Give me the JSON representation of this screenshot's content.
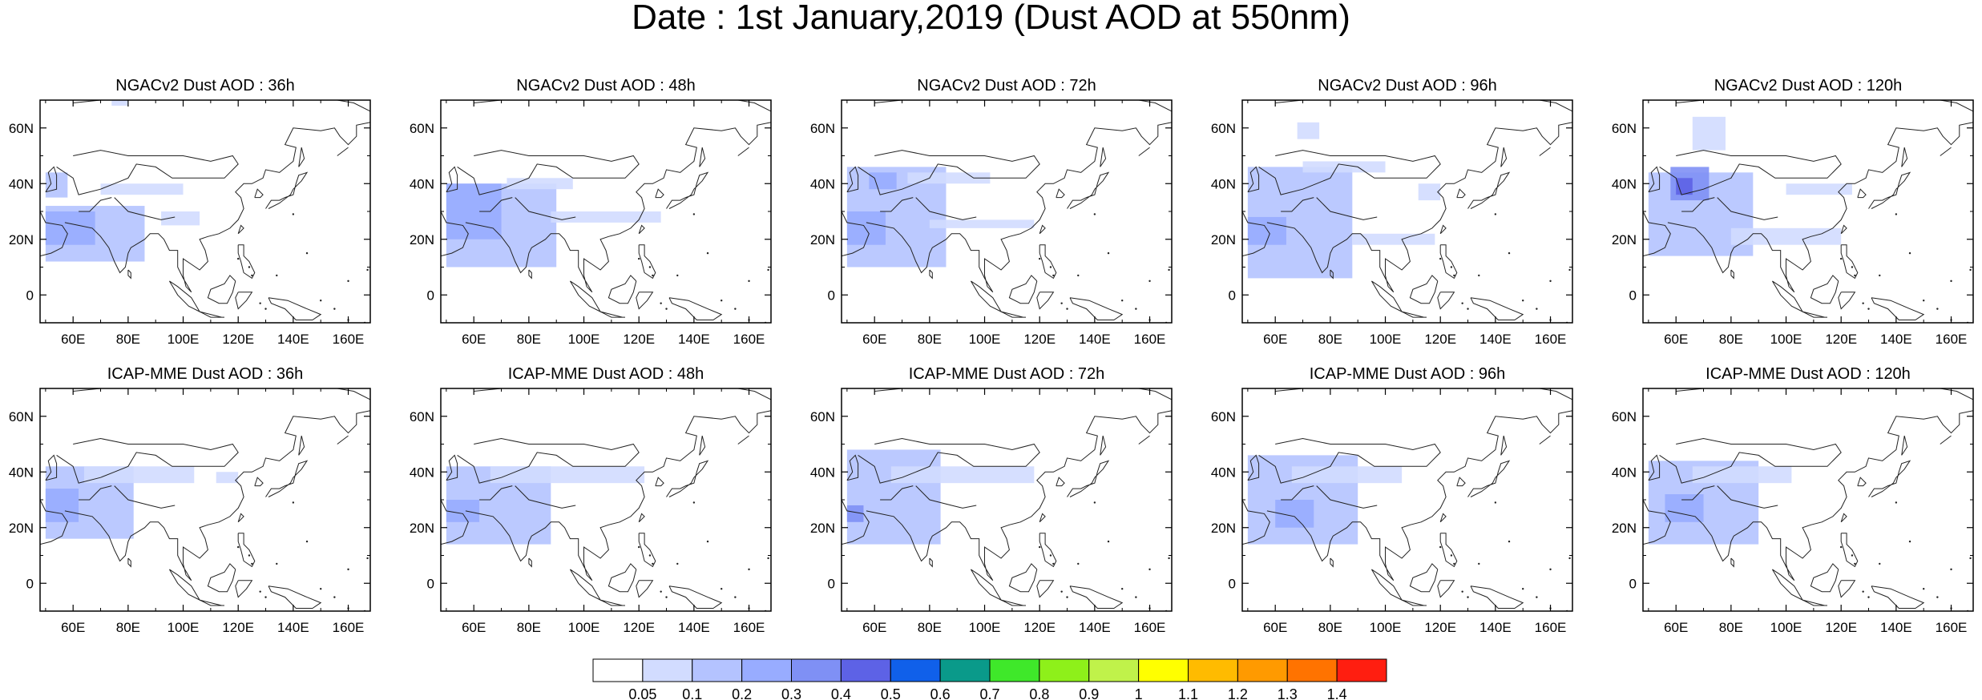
{
  "title": "Date : 1st January,2019 (Dust AOD at 550nm)",
  "x_ticks": [
    "60E",
    "80E",
    "100E",
    "120E",
    "140E",
    "160E"
  ],
  "y_ticks": [
    "60N",
    "40N",
    "20N",
    "0"
  ],
  "x_tick_values": [
    60,
    80,
    100,
    120,
    140,
    160
  ],
  "y_tick_values": [
    60,
    40,
    20,
    0
  ],
  "lon_range": [
    48,
    168
  ],
  "lat_range": [
    -10,
    70
  ],
  "rows": [
    {
      "model": "NGACv2",
      "panels": [
        {
          "title": "NGACv2 Dust AOD : 36h",
          "lead_hours": 36,
          "dust_regions": [
            {
              "lon": 50,
              "lat": 35,
              "w": 8,
              "h": 9,
              "aod": 0.15
            },
            {
              "lon": 50,
              "lat": 12,
              "w": 36,
              "h": 20,
              "aod": 0.15
            },
            {
              "lon": 50,
              "lat": 18,
              "w": 18,
              "h": 12,
              "aod": 0.25
            },
            {
              "lon": 70,
              "lat": 36,
              "w": 30,
              "h": 4,
              "aod": 0.08
            },
            {
              "lon": 92,
              "lat": 25,
              "w": 14,
              "h": 5,
              "aod": 0.08
            },
            {
              "lon": 74,
              "lat": 68,
              "w": 6,
              "h": 3,
              "aod": 0.08
            }
          ]
        },
        {
          "title": "NGACv2 Dust AOD : 48h",
          "lead_hours": 48,
          "dust_regions": [
            {
              "lon": 50,
              "lat": 10,
              "w": 40,
              "h": 30,
              "aod": 0.15
            },
            {
              "lon": 50,
              "lat": 20,
              "w": 20,
              "h": 20,
              "aod": 0.25
            },
            {
              "lon": 72,
              "lat": 38,
              "w": 24,
              "h": 4,
              "aod": 0.08
            },
            {
              "lon": 88,
              "lat": 26,
              "w": 40,
              "h": 4,
              "aod": 0.08
            }
          ]
        },
        {
          "title": "NGACv2 Dust AOD : 72h",
          "lead_hours": 72,
          "dust_regions": [
            {
              "lon": 50,
              "lat": 10,
              "w": 36,
              "h": 36,
              "aod": 0.15
            },
            {
              "lon": 50,
              "lat": 18,
              "w": 14,
              "h": 12,
              "aod": 0.25
            },
            {
              "lon": 58,
              "lat": 38,
              "w": 10,
              "h": 6,
              "aod": 0.2
            },
            {
              "lon": 72,
              "lat": 40,
              "w": 30,
              "h": 4,
              "aod": 0.08
            },
            {
              "lon": 80,
              "lat": 24,
              "w": 38,
              "h": 3,
              "aod": 0.08
            }
          ]
        },
        {
          "title": "NGACv2 Dust AOD : 96h",
          "lead_hours": 96,
          "dust_regions": [
            {
              "lon": 50,
              "lat": 6,
              "w": 38,
              "h": 40,
              "aod": 0.15
            },
            {
              "lon": 50,
              "lat": 18,
              "w": 14,
              "h": 10,
              "aod": 0.25
            },
            {
              "lon": 70,
              "lat": 44,
              "w": 30,
              "h": 4,
              "aod": 0.08
            },
            {
              "lon": 68,
              "lat": 56,
              "w": 8,
              "h": 6,
              "aod": 0.08
            },
            {
              "lon": 88,
              "lat": 18,
              "w": 30,
              "h": 4,
              "aod": 0.08
            },
            {
              "lon": 112,
              "lat": 34,
              "w": 8,
              "h": 6,
              "aod": 0.08
            }
          ]
        },
        {
          "title": "NGACv2 Dust AOD : 120h",
          "lead_hours": 120,
          "dust_regions": [
            {
              "lon": 50,
              "lat": 14,
              "w": 38,
              "h": 30,
              "aod": 0.15
            },
            {
              "lon": 58,
              "lat": 34,
              "w": 14,
              "h": 12,
              "aod": 0.3
            },
            {
              "lon": 60,
              "lat": 36,
              "w": 6,
              "h": 6,
              "aod": 0.45
            },
            {
              "lon": 66,
              "lat": 52,
              "w": 12,
              "h": 12,
              "aod": 0.08
            },
            {
              "lon": 80,
              "lat": 18,
              "w": 40,
              "h": 6,
              "aod": 0.08
            },
            {
              "lon": 100,
              "lat": 36,
              "w": 24,
              "h": 4,
              "aod": 0.08
            }
          ]
        }
      ]
    },
    {
      "model": "ICAP-MME",
      "panels": [
        {
          "title": "ICAP-MME Dust AOD : 36h",
          "lead_hours": 36,
          "dust_regions": [
            {
              "lon": 50,
              "lat": 16,
              "w": 32,
              "h": 26,
              "aod": 0.15
            },
            {
              "lon": 50,
              "lat": 22,
              "w": 12,
              "h": 12,
              "aod": 0.25
            },
            {
              "lon": 64,
              "lat": 36,
              "w": 40,
              "h": 6,
              "aod": 0.08
            },
            {
              "lon": 112,
              "lat": 36,
              "w": 8,
              "h": 4,
              "aod": 0.08
            }
          ]
        },
        {
          "title": "ICAP-MME Dust AOD : 48h",
          "lead_hours": 48,
          "dust_regions": [
            {
              "lon": 50,
              "lat": 14,
              "w": 38,
              "h": 28,
              "aod": 0.15
            },
            {
              "lon": 50,
              "lat": 22,
              "w": 12,
              "h": 8,
              "aod": 0.2
            },
            {
              "lon": 66,
              "lat": 36,
              "w": 56,
              "h": 6,
              "aod": 0.08
            }
          ]
        },
        {
          "title": "ICAP-MME Dust AOD : 72h",
          "lead_hours": 72,
          "dust_regions": [
            {
              "lon": 50,
              "lat": 14,
              "w": 34,
              "h": 34,
              "aod": 0.15
            },
            {
              "lon": 50,
              "lat": 22,
              "w": 6,
              "h": 6,
              "aod": 0.35
            },
            {
              "lon": 66,
              "lat": 36,
              "w": 52,
              "h": 6,
              "aod": 0.08
            }
          ]
        },
        {
          "title": "ICAP-MME Dust AOD : 96h",
          "lead_hours": 96,
          "dust_regions": [
            {
              "lon": 50,
              "lat": 14,
              "w": 40,
              "h": 32,
              "aod": 0.15
            },
            {
              "lon": 60,
              "lat": 20,
              "w": 14,
              "h": 10,
              "aod": 0.25
            },
            {
              "lon": 66,
              "lat": 36,
              "w": 40,
              "h": 6,
              "aod": 0.08
            }
          ]
        },
        {
          "title": "ICAP-MME Dust AOD : 120h",
          "lead_hours": 120,
          "dust_regions": [
            {
              "lon": 50,
              "lat": 14,
              "w": 40,
              "h": 30,
              "aod": 0.15
            },
            {
              "lon": 56,
              "lat": 22,
              "w": 14,
              "h": 10,
              "aod": 0.2
            },
            {
              "lon": 66,
              "lat": 36,
              "w": 36,
              "h": 6,
              "aod": 0.08
            }
          ]
        }
      ]
    }
  ],
  "colorbar": {
    "labels": [
      "0.05",
      "0.1",
      "0.2",
      "0.3",
      "0.4",
      "0.5",
      "0.6",
      "0.7",
      "0.8",
      "0.9",
      "1",
      "1.1",
      "1.2",
      "1.3",
      "1.4"
    ],
    "levels": [
      0.05,
      0.1,
      0.2,
      0.3,
      0.4,
      0.5,
      0.6,
      0.7,
      0.8,
      0.9,
      1.0,
      1.1,
      1.2,
      1.3,
      1.4
    ],
    "colors": [
      "#ffffff",
      "#d2dcff",
      "#b4c3ff",
      "#98acff",
      "#7f90f5",
      "#5d62e6",
      "#1060ea",
      "#0a9a8a",
      "#3fe82a",
      "#8ef01a",
      "#c0f24a",
      "#ffff00",
      "#ffbb00",
      "#ff9a00",
      "#ff7300",
      "#ff1e10"
    ]
  }
}
